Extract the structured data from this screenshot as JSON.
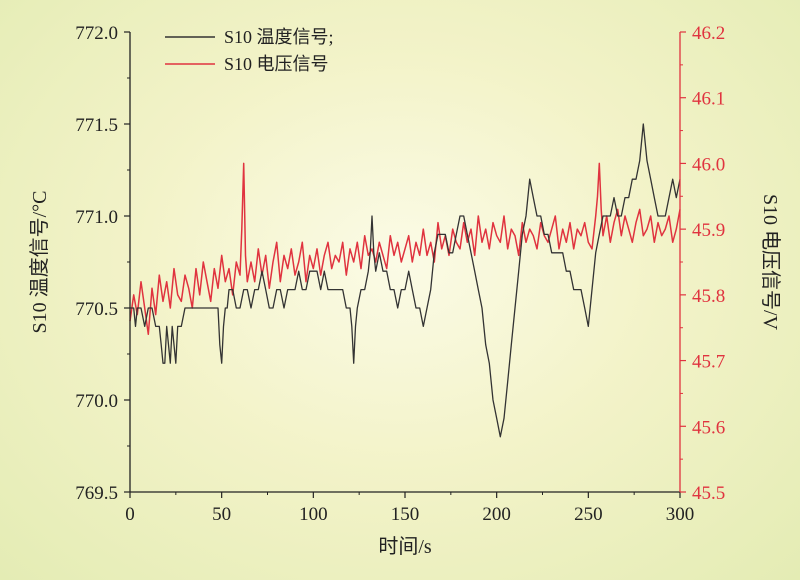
{
  "chart_data": {
    "type": "line",
    "xlabel": "时间/s",
    "ylabel_left": "S10 温度信号/°C",
    "ylabel_right": "S10 电压信号/V",
    "xlim": [
      0,
      300
    ],
    "ylim_left": [
      769.5,
      772.0
    ],
    "ylim_right": [
      45.5,
      46.2
    ],
    "x_ticks": [
      "0",
      "50",
      "100",
      "150",
      "200",
      "250",
      "300"
    ],
    "y_left_ticks": [
      "769.5",
      "770.0",
      "770.5",
      "771.0",
      "771.5",
      "772.0"
    ],
    "y_right_ticks": [
      "45.5",
      "45.6",
      "45.7",
      "45.8",
      "45.9",
      "46.0",
      "46.1",
      "46.2"
    ],
    "legend_position": "top-left",
    "grid": false,
    "colors": {
      "temperature": "#333333",
      "voltage": "#e0333f",
      "right_axis": "#e0333f"
    },
    "series": [
      {
        "name": "S10 温度信号;",
        "axis": "left",
        "x": [
          0,
          2,
          3,
          4,
          6,
          8,
          10,
          12,
          14,
          16,
          17,
          18,
          19,
          20,
          21,
          22,
          23,
          24,
          25,
          26,
          28,
          30,
          32,
          34,
          36,
          38,
          40,
          42,
          44,
          46,
          48,
          49,
          50,
          51,
          52,
          53,
          54,
          56,
          58,
          60,
          62,
          64,
          66,
          68,
          70,
          72,
          74,
          76,
          78,
          80,
          82,
          84,
          86,
          88,
          90,
          92,
          94,
          96,
          98,
          100,
          102,
          104,
          106,
          108,
          110,
          112,
          114,
          116,
          118,
          120,
          121,
          122,
          123,
          124,
          126,
          128,
          130,
          131,
          132,
          133,
          134,
          136,
          138,
          140,
          142,
          144,
          146,
          148,
          150,
          152,
          154,
          156,
          158,
          160,
          162,
          164,
          166,
          168,
          170,
          172,
          174,
          176,
          178,
          180,
          182,
          184,
          186,
          188,
          190,
          192,
          194,
          196,
          198,
          200,
          202,
          204,
          206,
          208,
          210,
          212,
          214,
          216,
          218,
          220,
          222,
          224,
          226,
          228,
          230,
          232,
          234,
          236,
          238,
          240,
          242,
          244,
          246,
          248,
          250,
          252,
          254,
          256,
          258,
          260,
          262,
          264,
          266,
          268,
          270,
          272,
          274,
          276,
          278,
          280,
          282,
          284,
          286,
          288,
          290,
          292,
          294,
          296,
          298,
          300
        ],
        "values": [
          770.5,
          770.5,
          770.4,
          770.5,
          770.5,
          770.4,
          770.5,
          770.5,
          770.4,
          770.4,
          770.3,
          770.2,
          770.2,
          770.4,
          770.3,
          770.2,
          770.4,
          770.3,
          770.2,
          770.4,
          770.4,
          770.5,
          770.5,
          770.5,
          770.5,
          770.5,
          770.5,
          770.5,
          770.5,
          770.5,
          770.5,
          770.3,
          770.2,
          770.4,
          770.5,
          770.5,
          770.6,
          770.6,
          770.5,
          770.5,
          770.6,
          770.6,
          770.5,
          770.6,
          770.6,
          770.7,
          770.6,
          770.5,
          770.5,
          770.6,
          770.6,
          770.5,
          770.6,
          770.6,
          770.6,
          770.7,
          770.6,
          770.6,
          770.7,
          770.7,
          770.7,
          770.6,
          770.7,
          770.6,
          770.6,
          770.6,
          770.6,
          770.6,
          770.5,
          770.5,
          770.4,
          770.2,
          770.4,
          770.5,
          770.6,
          770.6,
          770.7,
          770.8,
          771.0,
          770.8,
          770.7,
          770.8,
          770.7,
          770.7,
          770.6,
          770.6,
          770.5,
          770.6,
          770.6,
          770.7,
          770.6,
          770.5,
          770.5,
          770.4,
          770.5,
          770.6,
          770.8,
          770.9,
          770.9,
          770.9,
          770.8,
          770.8,
          770.9,
          771.0,
          771.0,
          770.9,
          770.8,
          770.7,
          770.6,
          770.5,
          770.3,
          770.2,
          770.0,
          769.9,
          769.8,
          769.9,
          770.1,
          770.3,
          770.5,
          770.7,
          770.9,
          771.0,
          771.2,
          771.1,
          771.0,
          771.0,
          770.9,
          770.9,
          770.8,
          770.8,
          770.8,
          770.8,
          770.7,
          770.7,
          770.6,
          770.6,
          770.6,
          770.5,
          770.4,
          770.6,
          770.8,
          770.9,
          771.0,
          771.0,
          771.0,
          771.1,
          771.0,
          771.0,
          771.1,
          771.1,
          771.2,
          771.2,
          771.3,
          771.5,
          771.3,
          771.2,
          771.1,
          771.0,
          771.0,
          771.0,
          771.1,
          771.2,
          771.1,
          771.2
        ]
      },
      {
        "name": "S10 电压信号",
        "axis": "right",
        "x": [
          0,
          2,
          4,
          6,
          8,
          10,
          12,
          14,
          16,
          18,
          20,
          22,
          24,
          26,
          28,
          30,
          32,
          34,
          36,
          38,
          40,
          42,
          44,
          46,
          48,
          50,
          52,
          54,
          56,
          58,
          60,
          61,
          62,
          63,
          64,
          66,
          68,
          70,
          72,
          74,
          76,
          78,
          80,
          82,
          84,
          86,
          88,
          90,
          92,
          94,
          96,
          98,
          100,
          102,
          104,
          106,
          108,
          110,
          112,
          114,
          116,
          118,
          120,
          122,
          124,
          126,
          128,
          130,
          132,
          134,
          136,
          138,
          140,
          142,
          144,
          146,
          148,
          150,
          152,
          154,
          156,
          158,
          160,
          162,
          164,
          166,
          168,
          170,
          172,
          174,
          176,
          178,
          180,
          182,
          184,
          186,
          188,
          190,
          192,
          194,
          196,
          198,
          200,
          202,
          204,
          206,
          208,
          210,
          212,
          214,
          216,
          218,
          220,
          222,
          224,
          226,
          228,
          230,
          232,
          234,
          236,
          238,
          240,
          242,
          244,
          246,
          248,
          250,
          252,
          254,
          255,
          256,
          257,
          258,
          260,
          262,
          264,
          266,
          268,
          270,
          272,
          274,
          276,
          278,
          280,
          282,
          284,
          286,
          288,
          290,
          292,
          294,
          296,
          298,
          300
        ],
        "values": [
          45.76,
          45.8,
          45.77,
          45.82,
          45.78,
          45.74,
          45.81,
          45.77,
          45.83,
          45.79,
          45.82,
          45.78,
          45.84,
          45.8,
          45.79,
          45.83,
          45.81,
          45.78,
          45.84,
          45.8,
          45.85,
          45.82,
          45.79,
          45.84,
          45.81,
          45.86,
          45.82,
          45.84,
          45.8,
          45.85,
          45.83,
          45.9,
          46.0,
          45.86,
          45.82,
          45.85,
          45.82,
          45.87,
          45.83,
          45.86,
          45.81,
          45.85,
          45.88,
          45.82,
          45.86,
          45.84,
          45.87,
          45.83,
          45.85,
          45.88,
          45.82,
          45.86,
          45.84,
          45.87,
          45.83,
          45.86,
          45.88,
          45.84,
          45.86,
          45.85,
          45.88,
          45.83,
          45.87,
          45.85,
          45.88,
          45.84,
          45.89,
          45.86,
          45.87,
          45.85,
          45.88,
          45.86,
          45.84,
          45.89,
          45.86,
          45.88,
          45.85,
          45.87,
          45.89,
          45.85,
          45.88,
          45.86,
          45.9,
          45.86,
          45.88,
          45.85,
          45.91,
          45.87,
          45.89,
          45.86,
          45.9,
          45.88,
          45.87,
          45.91,
          45.88,
          45.9,
          45.86,
          45.92,
          45.88,
          45.9,
          45.87,
          45.91,
          45.89,
          45.88,
          45.92,
          45.87,
          45.9,
          45.89,
          45.86,
          45.91,
          45.88,
          45.9,
          45.89,
          45.87,
          45.91,
          45.89,
          45.88,
          45.9,
          45.92,
          45.87,
          45.9,
          45.88,
          45.91,
          45.87,
          45.9,
          45.89,
          45.91,
          45.88,
          45.87,
          45.92,
          45.95,
          46.0,
          45.93,
          45.89,
          45.92,
          45.88,
          45.91,
          45.93,
          45.89,
          45.92,
          45.9,
          45.88,
          45.91,
          45.93,
          45.89,
          45.9,
          45.92,
          45.88,
          45.91,
          45.89,
          45.9,
          45.92,
          45.88,
          45.9,
          45.93
        ]
      }
    ]
  }
}
